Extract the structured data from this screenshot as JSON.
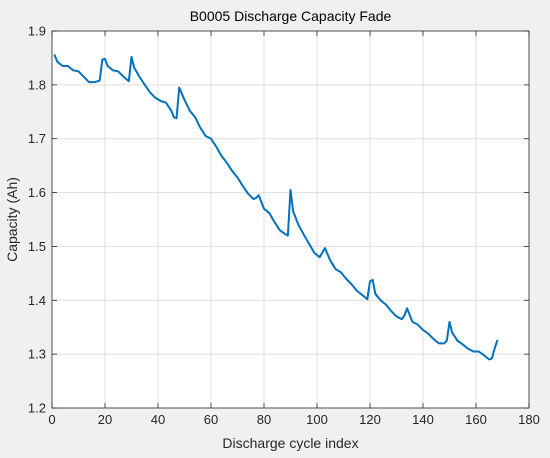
{
  "chart_data": {
    "type": "line",
    "title": "B0005 Discharge Capacity Fade",
    "xlabel": "Discharge cycle index",
    "ylabel": "Capacity (Ah)",
    "xlim": [
      0,
      180
    ],
    "ylim": [
      1.2,
      1.9
    ],
    "xticks": [
      0,
      20,
      40,
      60,
      80,
      100,
      120,
      140,
      160,
      180
    ],
    "yticks": [
      1.2,
      1.3,
      1.4,
      1.5,
      1.6,
      1.7,
      1.8,
      1.9
    ],
    "xtick_labels": [
      "0",
      "20",
      "40",
      "60",
      "80",
      "100",
      "120",
      "140",
      "160",
      "180"
    ],
    "ytick_labels": [
      "1.2",
      "1.3",
      "1.4",
      "1.5",
      "1.6",
      "1.7",
      "1.8",
      "1.9"
    ],
    "grid": true,
    "legend": "none",
    "series": [
      {
        "color": "#0072bd",
        "x": [
          1,
          2,
          4,
          6,
          8,
          10,
          12,
          14,
          16,
          18,
          19,
          20,
          21,
          23,
          25,
          27,
          29,
          30,
          31,
          33,
          35,
          37,
          39,
          41,
          43,
          45,
          46,
          47,
          48,
          50,
          52,
          54,
          56,
          58,
          60,
          62,
          64,
          66,
          68,
          70,
          72,
          74,
          76,
          77,
          78,
          80,
          82,
          84,
          86,
          88,
          89,
          90,
          91,
          93,
          95,
          97,
          99,
          101,
          103,
          105,
          107,
          109,
          111,
          113,
          115,
          117,
          119,
          120,
          121,
          122,
          124,
          126,
          128,
          130,
          132,
          133,
          134,
          136,
          138,
          140,
          142,
          144,
          146,
          148,
          149,
          150,
          151,
          153,
          155,
          157,
          159,
          161,
          163,
          165,
          166,
          167,
          168
        ],
        "y": [
          1.855,
          1.843,
          1.835,
          1.835,
          1.827,
          1.825,
          1.815,
          1.805,
          1.805,
          1.808,
          1.847,
          1.848,
          1.835,
          1.827,
          1.825,
          1.815,
          1.807,
          1.852,
          1.832,
          1.815,
          1.8,
          1.786,
          1.776,
          1.77,
          1.767,
          1.752,
          1.74,
          1.738,
          1.795,
          1.772,
          1.752,
          1.74,
          1.72,
          1.705,
          1.7,
          1.685,
          1.668,
          1.655,
          1.64,
          1.628,
          1.612,
          1.598,
          1.588,
          1.59,
          1.595,
          1.57,
          1.562,
          1.545,
          1.53,
          1.523,
          1.52,
          1.605,
          1.565,
          1.54,
          1.522,
          1.505,
          1.488,
          1.48,
          1.497,
          1.474,
          1.458,
          1.452,
          1.44,
          1.43,
          1.418,
          1.41,
          1.402,
          1.435,
          1.438,
          1.412,
          1.4,
          1.392,
          1.38,
          1.37,
          1.365,
          1.372,
          1.385,
          1.36,
          1.355,
          1.345,
          1.338,
          1.328,
          1.32,
          1.32,
          1.325,
          1.36,
          1.34,
          1.325,
          1.318,
          1.31,
          1.305,
          1.305,
          1.298,
          1.29,
          1.292,
          1.31,
          1.325
        ]
      }
    ]
  }
}
